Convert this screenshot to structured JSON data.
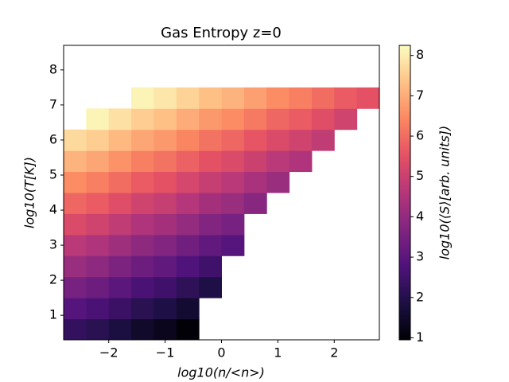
{
  "chart_data": {
    "type": "heatmap",
    "title": "Gas Entropy z=0",
    "xlabel": "log10(n/<n>)",
    "ylabel": "log10(T[K])",
    "colorbar_label": "log10(⟨S⟩[arb. units])",
    "colormap": "magma",
    "x_bins": [
      -2.8,
      -2.4,
      -2.0,
      -1.6,
      -1.2,
      -0.8,
      -0.4,
      0.0,
      0.4,
      0.8,
      1.2,
      1.6,
      2.0,
      2.4,
      2.8
    ],
    "y_bins": [
      0.3,
      0.9,
      1.5,
      2.1,
      2.7,
      3.3,
      3.9,
      4.5,
      5.1,
      5.7,
      6.3,
      6.9,
      7.5,
      8.1,
      8.7
    ],
    "values": [
      [
        2.3,
        2.1,
        1.8,
        1.5,
        1.3,
        1.0,
        null,
        null,
        null,
        null,
        null,
        null,
        null,
        null
      ],
      [
        2.9,
        2.7,
        2.4,
        2.1,
        1.9,
        1.6,
        null,
        null,
        null,
        null,
        null,
        null,
        null,
        null
      ],
      [
        3.5,
        3.3,
        3.0,
        2.7,
        2.5,
        2.2,
        1.9,
        null,
        null,
        null,
        null,
        null,
        null,
        null
      ],
      [
        4.1,
        3.9,
        3.6,
        3.3,
        3.1,
        2.8,
        2.5,
        null,
        null,
        null,
        null,
        null,
        null,
        null
      ],
      [
        4.7,
        4.5,
        4.2,
        3.9,
        3.7,
        3.4,
        3.1,
        2.9,
        null,
        null,
        null,
        null,
        null,
        null
      ],
      [
        5.3,
        5.1,
        4.8,
        4.5,
        4.3,
        4.0,
        3.7,
        3.5,
        null,
        null,
        null,
        null,
        null,
        null
      ],
      [
        5.9,
        5.7,
        5.4,
        5.1,
        4.9,
        4.6,
        4.3,
        4.1,
        3.8,
        null,
        null,
        null,
        null,
        null
      ],
      [
        6.5,
        6.3,
        6.0,
        5.7,
        5.5,
        5.2,
        4.9,
        4.7,
        4.4,
        4.1,
        null,
        null,
        null,
        null
      ],
      [
        7.1,
        6.9,
        6.6,
        6.3,
        6.1,
        5.8,
        5.5,
        5.3,
        5.0,
        4.7,
        4.5,
        null,
        null,
        null
      ],
      [
        7.7,
        7.5,
        7.2,
        6.9,
        6.7,
        6.4,
        6.1,
        5.9,
        5.6,
        5.3,
        5.1,
        4.8,
        null,
        null
      ],
      [
        null,
        8.1,
        7.8,
        7.5,
        7.3,
        7.0,
        6.7,
        6.5,
        6.2,
        5.9,
        5.7,
        5.4,
        5.1,
        null
      ],
      [
        null,
        null,
        null,
        8.1,
        7.9,
        7.6,
        7.3,
        7.1,
        6.8,
        6.5,
        6.3,
        6.0,
        5.7,
        5.5
      ],
      [
        null,
        null,
        null,
        null,
        null,
        null,
        null,
        null,
        null,
        null,
        null,
        null,
        null,
        null
      ],
      [
        null,
        null,
        null,
        null,
        null,
        null,
        null,
        null,
        null,
        null,
        null,
        null,
        null,
        null
      ]
    ],
    "xlim": [
      -2.8,
      2.8
    ],
    "ylim": [
      0.3,
      8.7
    ],
    "xticks": [
      {
        "value": -2,
        "label": "−2"
      },
      {
        "value": -1,
        "label": "−1"
      },
      0,
      1,
      2
    ],
    "yticks": [
      1,
      2,
      3,
      4,
      5,
      6,
      7,
      8
    ],
    "clim": [
      0.95,
      8.25
    ],
    "cticks": [
      1,
      2,
      3,
      4,
      5,
      6,
      7,
      8
    ]
  }
}
